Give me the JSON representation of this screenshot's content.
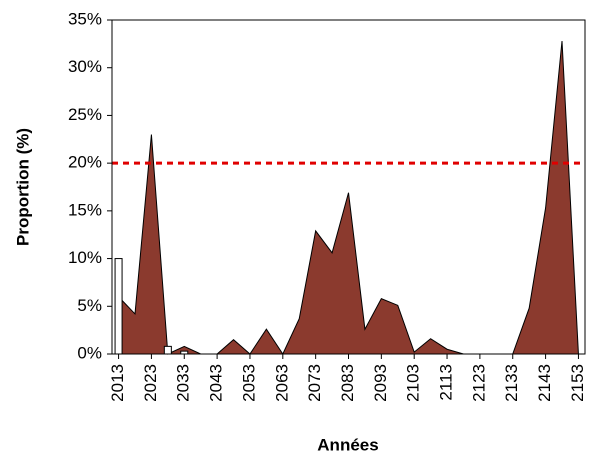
{
  "chart_data": {
    "type": "area",
    "x_label": "Années",
    "y_label": "Proportion (%)",
    "x": [
      2013,
      2018,
      2023,
      2028,
      2033,
      2038,
      2043,
      2048,
      2053,
      2058,
      2063,
      2068,
      2073,
      2078,
      2083,
      2088,
      2093,
      2098,
      2103,
      2108,
      2113,
      2118,
      2123,
      2128,
      2133,
      2138,
      2143,
      2148,
      2153
    ],
    "series": [
      {
        "type": "area",
        "color": "#8b3a2e",
        "values": [
          6,
          4.2,
          23,
          0,
          0.8,
          0,
          0,
          1.5,
          0,
          2.6,
          0,
          3.7,
          12.9,
          10.6,
          16.9,
          2.6,
          5.8,
          5.1,
          0.2,
          1.6,
          0.5,
          0,
          0,
          0,
          0,
          4.8,
          15.3,
          32.8,
          0
        ]
      },
      {
        "type": "bar",
        "color": "#ffffff",
        "values": [
          10,
          null,
          null,
          0.8,
          0.3,
          null,
          null,
          null,
          null,
          null,
          null,
          null,
          null,
          null,
          null,
          null,
          null,
          null,
          null,
          null,
          null,
          null,
          null,
          null,
          null,
          null,
          null,
          null,
          null
        ]
      }
    ],
    "reference_line": {
      "value": 20,
      "color": "#e00000"
    },
    "xlim": [
      2011,
      2155
    ],
    "xticks": [
      2013,
      2023,
      2033,
      2043,
      2053,
      2063,
      2073,
      2083,
      2093,
      2103,
      2113,
      2123,
      2133,
      2143,
      2153
    ],
    "ylim": [
      0,
      35
    ],
    "yticks": [
      {
        "value": 0,
        "label": "0%"
      },
      {
        "value": 5,
        "label": "5%"
      },
      {
        "value": 10,
        "label": "10%"
      },
      {
        "value": 15,
        "label": "15%"
      },
      {
        "value": 20,
        "label": "20%"
      },
      {
        "value": 25,
        "label": "25%"
      },
      {
        "value": 30,
        "label": "30%"
      },
      {
        "value": 35,
        "label": "35%"
      }
    ]
  }
}
